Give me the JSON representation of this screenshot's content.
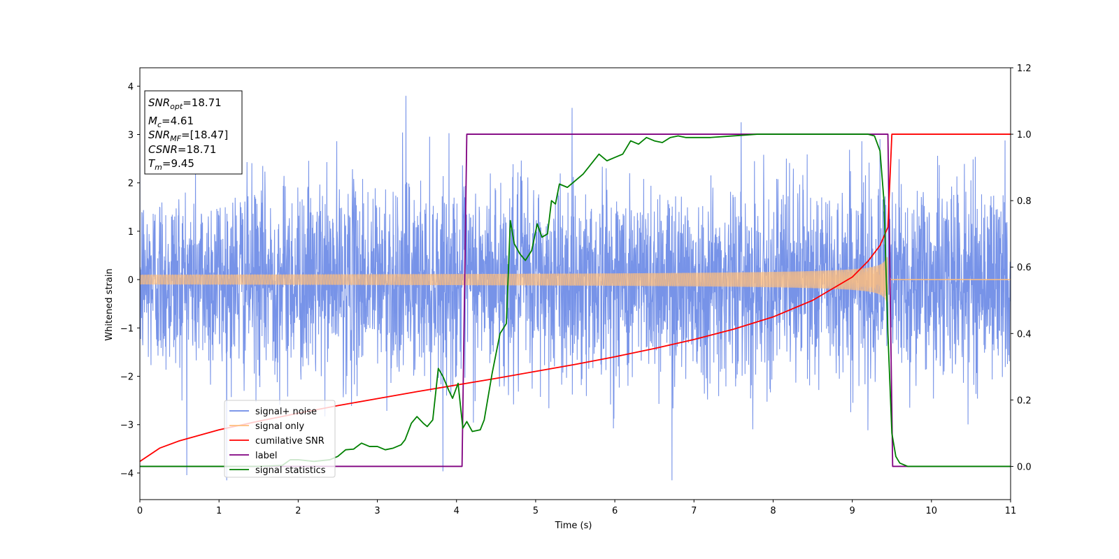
{
  "chart_data": {
    "type": "line",
    "xlabel": "Time (s)",
    "ylabel": "Whitened strain",
    "xlim": [
      0,
      11
    ],
    "ylim_left": [
      -4.55,
      4.38
    ],
    "ylim_right": [
      -0.1,
      1.2
    ],
    "x_ticks": [
      0,
      1,
      2,
      3,
      4,
      5,
      6,
      7,
      8,
      9,
      10,
      11
    ],
    "y_ticks_left": [
      -4,
      -3,
      -2,
      -1,
      0,
      1,
      2,
      3,
      4
    ],
    "y_ticks_right": [
      0.0,
      0.2,
      0.4,
      0.6,
      0.8,
      1.0,
      1.2
    ],
    "grid": false,
    "legend_position": "lower-left",
    "annotation": {
      "snr_opt": {
        "base": "SNR",
        "sub": "opt",
        "value": "=18.71"
      },
      "mc": {
        "base": "M",
        "sub": "c",
        "value": "=4.61"
      },
      "snr_mf": {
        "base": "SNR",
        "sub": "MF",
        "value": "=[18.47]"
      },
      "csnr": {
        "base": "CSNR",
        "value": "=18.71"
      },
      "tm": {
        "base": "T",
        "sub": "m",
        "value": "=9.45"
      }
    },
    "series": [
      {
        "name": "signal+ noise",
        "axis": "left",
        "color": "#6b8ae6",
        "kind": "gaussian noise (std ≈ 1) plus chirp signal, 0–11 s",
        "noise_std": 1.0,
        "peak_max": 3.8,
        "peak_min": -4.15
      },
      {
        "name": "signal only",
        "axis": "left",
        "color": "#ffbe7d",
        "kind": "inspiral chirp, amplitude growing to merger at Tm",
        "amplitude_start": 0.1,
        "amplitude_at_9": 0.55,
        "amplitude_peak": 1.1,
        "merger_time": 9.45
      },
      {
        "name": "cumilative SNR",
        "axis": "right",
        "color": "#ff0000",
        "x": [
          0,
          0.25,
          0.5,
          1,
          1.5,
          2,
          2.5,
          3,
          3.5,
          4,
          4.5,
          5,
          5.5,
          6,
          6.5,
          7,
          7.5,
          8,
          8.5,
          9,
          9.2,
          9.35,
          9.45,
          9.5,
          11
        ],
        "y": [
          0.015,
          0.055,
          0.077,
          0.11,
          0.136,
          0.16,
          0.183,
          0.204,
          0.225,
          0.245,
          0.265,
          0.286,
          0.307,
          0.33,
          0.355,
          0.382,
          0.413,
          0.45,
          0.5,
          0.57,
          0.618,
          0.665,
          0.72,
          1.0,
          1.0
        ]
      },
      {
        "name": "label",
        "axis": "right",
        "color": "#800080",
        "x": [
          0,
          4.07,
          4.13,
          9.45,
          9.51,
          11
        ],
        "y": [
          0,
          0,
          1,
          1,
          0,
          0
        ]
      },
      {
        "name": "signal statistics",
        "axis": "right",
        "color": "#008000",
        "x": [
          0,
          0.5,
          1,
          1.5,
          1.8,
          1.9,
          2,
          2.2,
          2.4,
          2.5,
          2.6,
          2.7,
          2.8,
          2.9,
          3.0,
          3.1,
          3.2,
          3.3,
          3.35,
          3.43,
          3.5,
          3.58,
          3.63,
          3.7,
          3.77,
          3.83,
          3.9,
          3.95,
          4.02,
          4.08,
          4.13,
          4.2,
          4.3,
          4.35,
          4.45,
          4.55,
          4.63,
          4.68,
          4.73,
          4.8,
          4.87,
          4.95,
          5.02,
          5.08,
          5.15,
          5.2,
          5.25,
          5.3,
          5.4,
          5.5,
          5.6,
          5.7,
          5.8,
          5.9,
          6.0,
          6.1,
          6.2,
          6.3,
          6.4,
          6.5,
          6.6,
          6.7,
          6.8,
          6.9,
          7.0,
          7.2,
          7.5,
          7.8,
          8.0,
          8.3,
          9.0,
          9.2,
          9.28,
          9.35,
          9.4,
          9.45,
          9.5,
          9.55,
          9.6,
          9.7,
          11
        ],
        "y": [
          0.0,
          0.0,
          0.0,
          0.0,
          0.003,
          0.02,
          0.02,
          0.015,
          0.02,
          0.03,
          0.05,
          0.052,
          0.07,
          0.06,
          0.06,
          0.05,
          0.055,
          0.065,
          0.08,
          0.13,
          0.15,
          0.13,
          0.12,
          0.14,
          0.295,
          0.27,
          0.23,
          0.205,
          0.25,
          0.115,
          0.135,
          0.105,
          0.11,
          0.14,
          0.28,
          0.4,
          0.43,
          0.74,
          0.67,
          0.64,
          0.62,
          0.65,
          0.73,
          0.69,
          0.7,
          0.8,
          0.79,
          0.85,
          0.84,
          0.86,
          0.88,
          0.91,
          0.94,
          0.92,
          0.93,
          0.94,
          0.98,
          0.97,
          0.99,
          0.98,
          0.975,
          0.99,
          0.995,
          0.99,
          0.99,
          0.99,
          0.995,
          1.0,
          1.0,
          1.0,
          1.0,
          1.0,
          0.995,
          0.95,
          0.8,
          0.4,
          0.1,
          0.03,
          0.01,
          0.0,
          0.0
        ]
      }
    ]
  }
}
